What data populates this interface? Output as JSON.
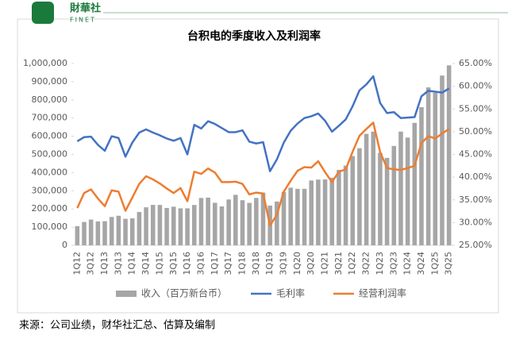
{
  "header": {
    "logo_cn": "財華社",
    "logo_en": "FINET"
  },
  "chart_data": {
    "type": "bar",
    "title": "台积电的季度收入及利润率",
    "categories": [
      "1Q12",
      null,
      "3Q12",
      null,
      "1Q13",
      null,
      "3Q13",
      null,
      "1Q14",
      null,
      "3Q14",
      null,
      "1Q15",
      null,
      "3Q15",
      null,
      "1Q16",
      null,
      "3Q16",
      null,
      "1Q17",
      null,
      "3Q17",
      null,
      "1Q18",
      null,
      "3Q18",
      null,
      "1Q19",
      null,
      "3Q19",
      null,
      "1Q20",
      null,
      "3Q20",
      null,
      "1Q21",
      null,
      "3Q21",
      null,
      "1Q22",
      null,
      "3Q22",
      null,
      "1Q23",
      null,
      "3Q23",
      null,
      "1Q24",
      null,
      "3Q24",
      null,
      "1Q25",
      null,
      "3Q25"
    ],
    "series": [
      {
        "name": "收入（百万新台币）",
        "type": "bar",
        "color": "#a6a6a6",
        "values": [
          105500,
          128200,
          141500,
          131400,
          132800,
          155900,
          162600,
          145800,
          148200,
          183000,
          209100,
          222500,
          222000,
          205400,
          212500,
          203500,
          203500,
          221800,
          260400,
          262200,
          233900,
          213900,
          252100,
          277600,
          248100,
          233300,
          260300,
          289800,
          218700,
          240900,
          293000,
          317200,
          310600,
          310700,
          356400,
          361500,
          362400,
          372100,
          414700,
          438200,
          491100,
          534100,
          613100,
          625500,
          508600,
          480800,
          546700,
          625500,
          592600,
          673500,
          759700,
          868500,
          839300,
          933800,
          989900
        ]
      },
      {
        "name": "毛利率",
        "type": "line",
        "axis": "y2",
        "color": "#4472c4",
        "values": [
          47.9,
          48.8,
          48.9,
          47.1,
          45.8,
          49.0,
          48.6,
          44.5,
          47.6,
          49.8,
          50.5,
          49.8,
          49.2,
          48.5,
          48.0,
          48.6,
          45.0,
          51.5,
          50.7,
          52.3,
          51.7,
          50.8,
          49.9,
          49.9,
          50.3,
          47.8,
          47.4,
          47.7,
          41.3,
          43.9,
          47.6,
          50.2,
          51.8,
          53.0,
          53.4,
          54.0,
          52.4,
          50.0,
          51.3,
          52.7,
          55.6,
          59.1,
          60.4,
          62.2,
          56.3,
          54.1,
          54.3,
          53.0,
          53.1,
          53.2,
          57.8,
          59.0,
          58.8,
          58.6,
          59.5
        ]
      },
      {
        "name": "经营利润率",
        "type": "line",
        "axis": "y2",
        "color": "#ed7d31",
        "values": [
          33.2,
          36.5,
          37.3,
          35.3,
          33.6,
          37.1,
          36.8,
          32.6,
          35.5,
          38.5,
          40.2,
          39.5,
          38.6,
          37.5,
          36.5,
          37.6,
          34.7,
          41.2,
          40.7,
          41.9,
          41.0,
          38.9,
          38.9,
          39.0,
          38.5,
          36.2,
          36.6,
          36.4,
          29.4,
          31.7,
          36.8,
          39.2,
          41.4,
          42.2,
          42.1,
          43.5,
          41.1,
          38.9,
          41.2,
          41.7,
          45.6,
          49.1,
          50.6,
          52.0,
          45.5,
          42.0,
          41.7,
          41.6,
          42.0,
          42.5,
          47.5,
          49.0,
          48.5,
          49.6,
          50.6
        ]
      }
    ],
    "ylim": [
      0,
      1000000
    ],
    "yticks": [
      0,
      {
        "value": 100000,
        "label": "100,000"
      },
      {
        "value": 200000,
        "label": "200,000"
      },
      {
        "value": 300000,
        "label": "300,000"
      },
      {
        "value": 400000,
        "label": "400,000"
      },
      {
        "value": 500000,
        "label": "500,000"
      },
      {
        "value": 600000,
        "label": "600,000"
      },
      {
        "value": 700000,
        "label": "700,000"
      },
      {
        "value": 800000,
        "label": "800,000"
      },
      {
        "value": 900000,
        "label": "900,000"
      },
      {
        "value": 1000000,
        "label": "1,000,000"
      }
    ],
    "y2lim": [
      25,
      65
    ],
    "y2ticks": [
      {
        "value": 25,
        "label": "25.00%"
      },
      {
        "value": 30,
        "label": "30.00%"
      },
      {
        "value": 35,
        "label": "35.00%"
      },
      {
        "value": 40,
        "label": "40.00%"
      },
      {
        "value": 45,
        "label": "45.00%"
      },
      {
        "value": 50,
        "label": "50.00%"
      },
      {
        "value": 55,
        "label": "55.00%"
      },
      {
        "value": 60,
        "label": "60.00%"
      },
      {
        "value": 65,
        "label": "65.00%"
      }
    ],
    "legend": "bottom"
  },
  "footer": {
    "source": "来源：公司业绩，财华社汇总、估算及编制"
  }
}
